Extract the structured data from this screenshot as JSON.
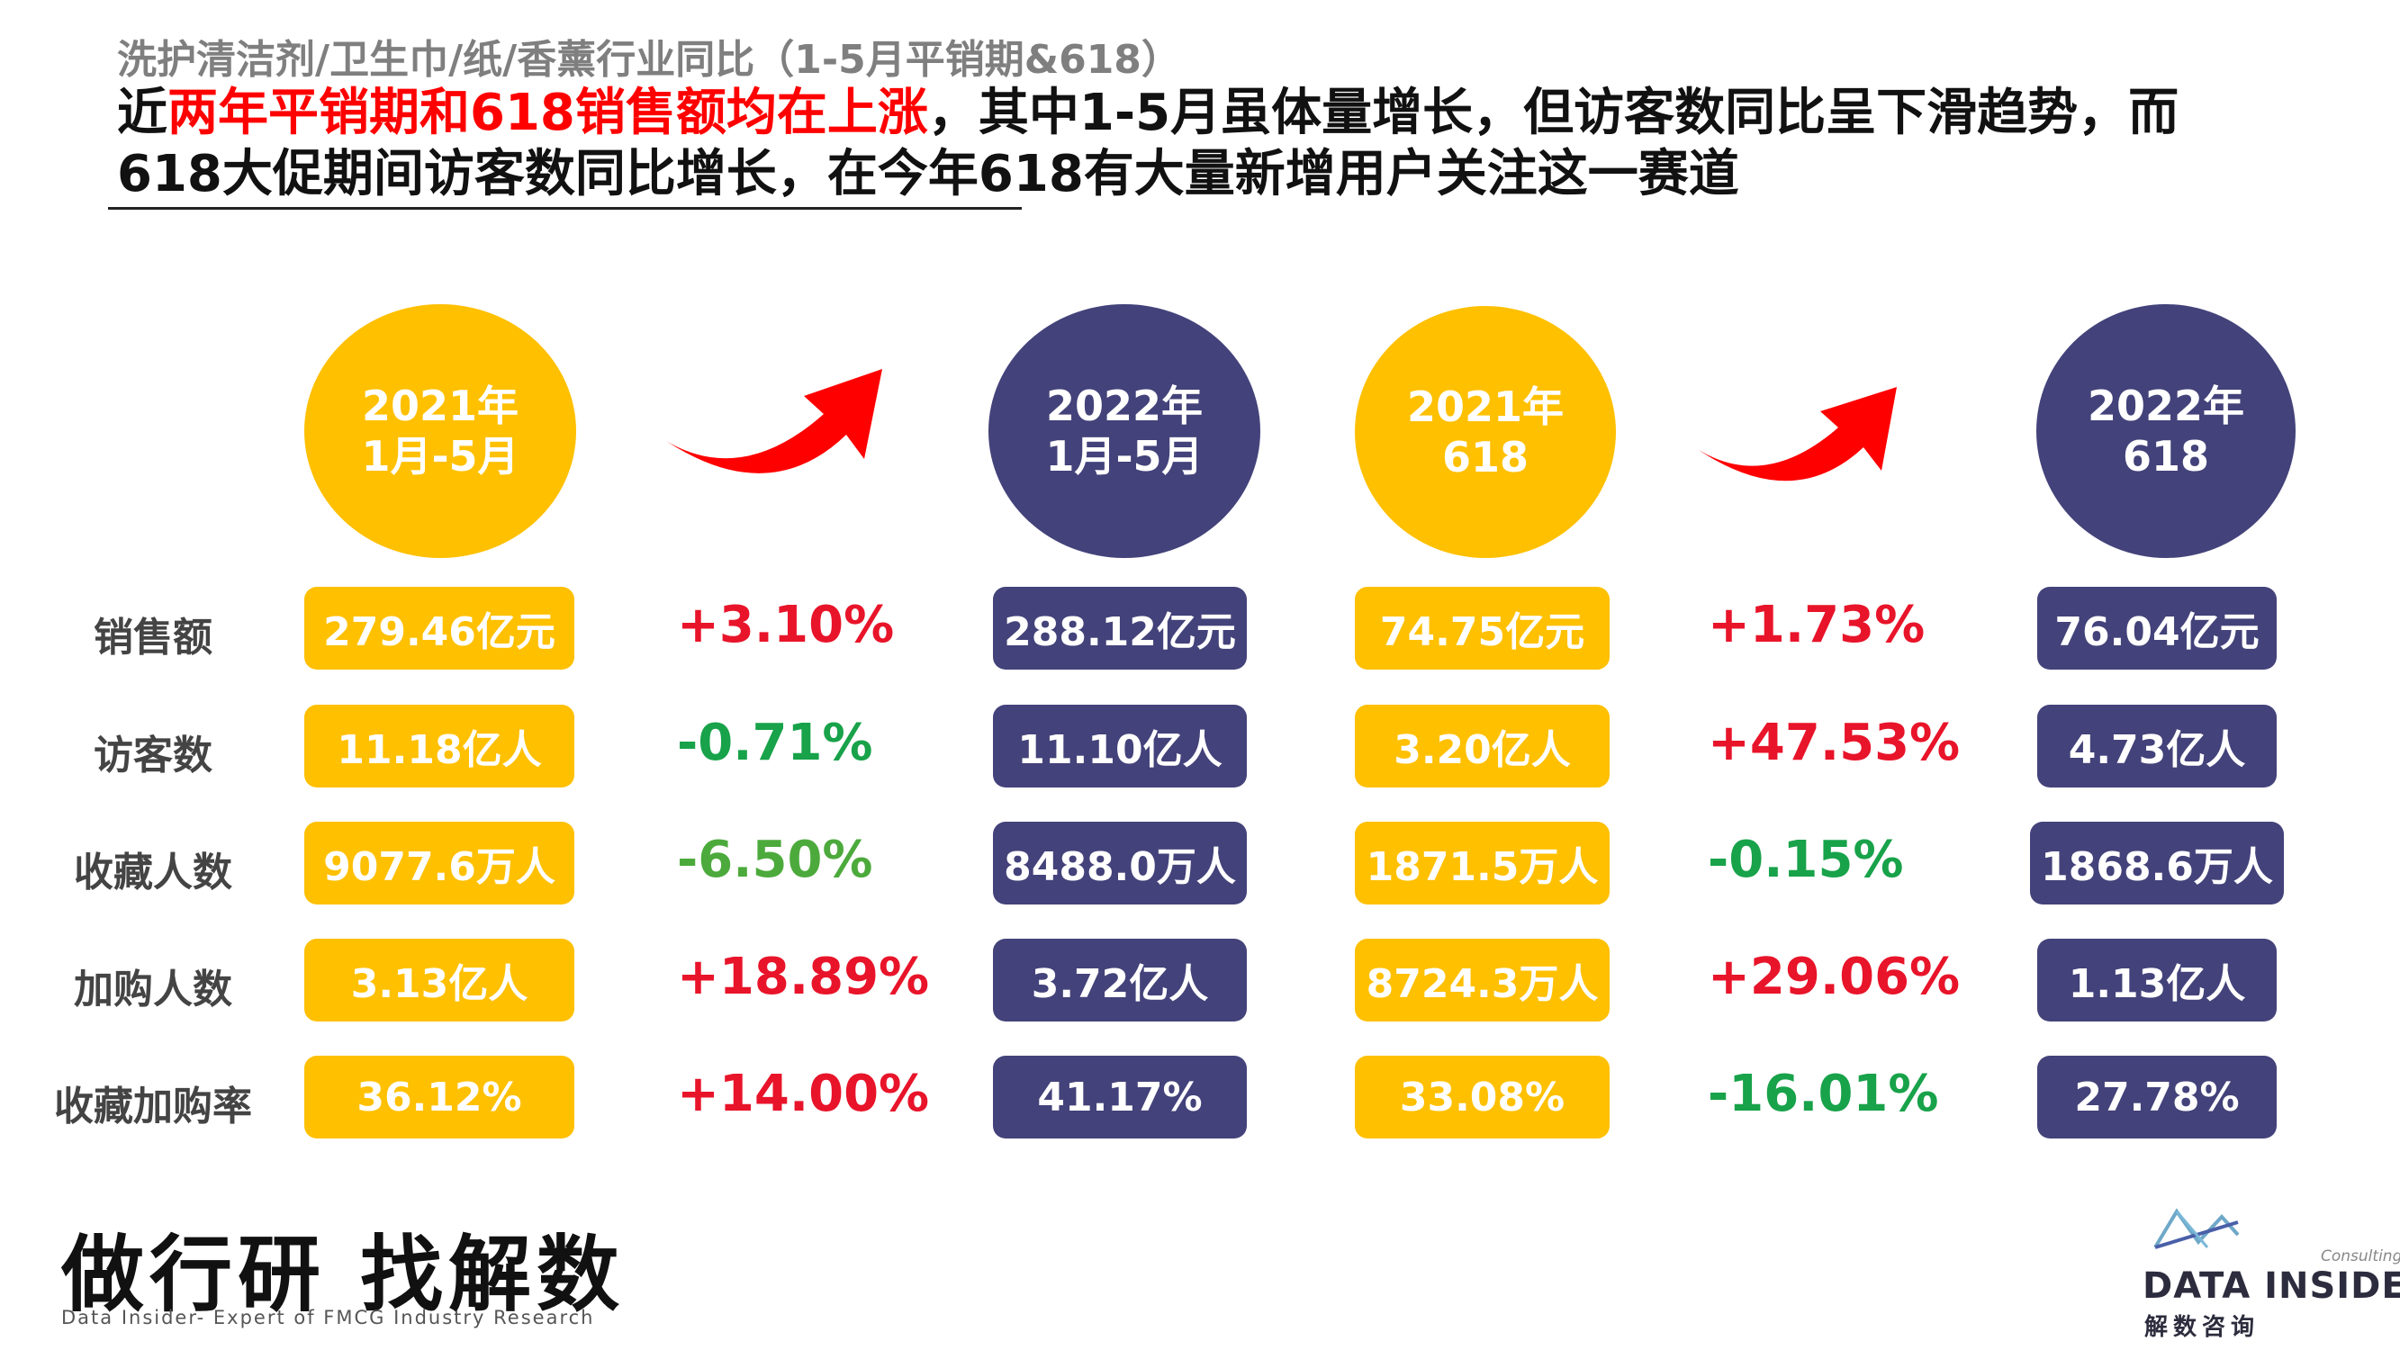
{
  "header": {
    "subtitle": "洗护清洁剂/卫生巾/纸/香薰行业同比（1-5月平销期&618）",
    "headline_line1_prefix": "近",
    "headline_line1_highlight": "两年平销期和618销售额均在上涨",
    "headline_line1_rest": "，其中1-5月虽体量增长，但访客数同比呈下滑趋势，而",
    "headline_line2": "618大促期间访客数同比增长，在今年618有大量新增用户关注这一赛道"
  },
  "periods": [
    {
      "line1": "2021年",
      "line2": "1月-5月"
    },
    {
      "line1": "2022年",
      "line2": "1月-5月"
    },
    {
      "line1": "2021年",
      "line2": "618"
    },
    {
      "line1": "2022年",
      "line2": "618"
    }
  ],
  "metrics": [
    {
      "label": "销售额",
      "v2021_jm": "279.46亿元",
      "chg_jm": "+3.10%",
      "v2022_jm": "288.12亿元",
      "v2021_618": "74.75亿元",
      "chg_618": "+1.73%",
      "v2022_618": "76.04亿元"
    },
    {
      "label": "访客数",
      "v2021_jm": "11.18亿人",
      "chg_jm": "-0.71%",
      "v2022_jm": "11.10亿人",
      "v2021_618": "3.20亿人",
      "chg_618": "+47.53%",
      "v2022_618": "4.73亿人"
    },
    {
      "label": "收藏人数",
      "v2021_jm": "9077.6万人",
      "chg_jm": "-6.50%",
      "v2022_jm": "8488.0万人",
      "v2021_618": "1871.5万人",
      "chg_618": "-0.15%",
      "v2022_618": "1868.6万人"
    },
    {
      "label": "加购人数",
      "v2021_jm": "3.13亿人",
      "chg_jm": "+18.89%",
      "v2022_jm": "3.72亿人",
      "v2021_618": "8724.3万人",
      "chg_618": "+29.06%",
      "v2022_618": "1.13亿人"
    },
    {
      "label": "收藏加购率",
      "v2021_jm": "36.12%",
      "chg_jm": "+14.00%",
      "v2022_jm": "41.17%",
      "v2021_618": "33.08%",
      "chg_618": "-16.01%",
      "v2022_618": "27.78%"
    }
  ],
  "footer": {
    "slogan": "做行研 找解数",
    "slogan_sub": "Data Insider- Expert of FMCG Industry Research",
    "logo_consulting": "Consulting",
    "logo_name": "DATA INSIDER",
    "logo_cn": "解数咨询"
  },
  "colors": {
    "gold": "#ffc000",
    "navy": "#43427a",
    "increase": "#e8142a",
    "decrease": "#18a24a",
    "arrow": "#ff0000"
  },
  "icons": {
    "arrow": "curved-up-arrow-icon",
    "logo": "data-insider-logo-icon"
  }
}
